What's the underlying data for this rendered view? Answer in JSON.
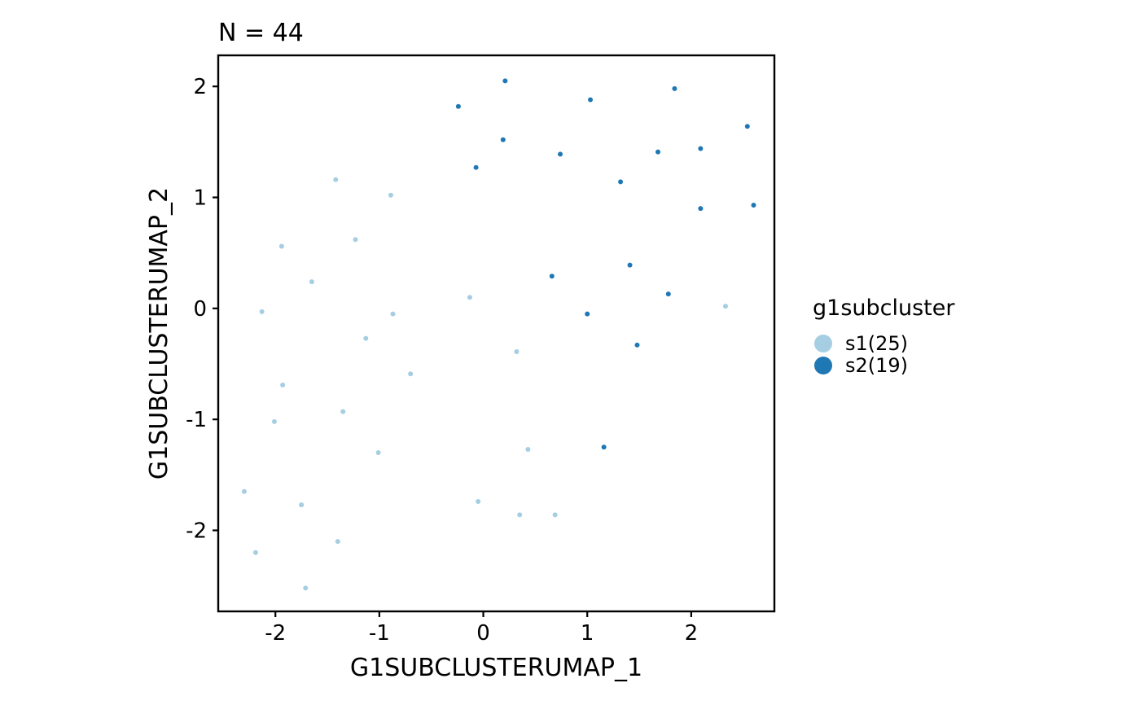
{
  "chart_data": {
    "type": "scatter",
    "title": "N = 44",
    "xlabel": "G1SUBCLUSTERUMAP_1",
    "ylabel": "G1SUBCLUSTERUMAP_2",
    "xlim": [
      -2.55,
      2.8
    ],
    "ylim": [
      -2.73,
      2.28
    ],
    "x_ticks": [
      -2,
      -1,
      0,
      1,
      2
    ],
    "y_ticks": [
      -2,
      -1,
      0,
      1,
      2
    ],
    "grid": false,
    "legend": {
      "title": "g1subcluster",
      "position": "right"
    },
    "series": [
      {
        "name": "s1(25)",
        "color": "#a6cee3",
        "points": [
          [
            -1.42,
            1.16
          ],
          [
            -0.89,
            1.02
          ],
          [
            -1.94,
            0.56
          ],
          [
            -1.23,
            0.62
          ],
          [
            -1.65,
            0.24
          ],
          [
            -0.13,
            0.1
          ],
          [
            -2.13,
            -0.03
          ],
          [
            -0.87,
            -0.05
          ],
          [
            -1.13,
            -0.27
          ],
          [
            2.33,
            0.02
          ],
          [
            0.32,
            -0.39
          ],
          [
            -0.7,
            -0.59
          ],
          [
            -1.93,
            -0.69
          ],
          [
            -1.35,
            -0.93
          ],
          [
            -2.01,
            -1.02
          ],
          [
            -1.01,
            -1.3
          ],
          [
            0.43,
            -1.27
          ],
          [
            -2.3,
            -1.65
          ],
          [
            -1.75,
            -1.77
          ],
          [
            -0.05,
            -1.74
          ],
          [
            0.35,
            -1.86
          ],
          [
            0.69,
            -1.86
          ],
          [
            -1.4,
            -2.1
          ],
          [
            -2.19,
            -2.2
          ],
          [
            -1.71,
            -2.52
          ]
        ]
      },
      {
        "name": "s2(19)",
        "color": "#1f78b4",
        "points": [
          [
            0.21,
            2.05
          ],
          [
            -0.24,
            1.82
          ],
          [
            1.84,
            1.98
          ],
          [
            1.03,
            1.88
          ],
          [
            0.19,
            1.52
          ],
          [
            0.74,
            1.39
          ],
          [
            -0.07,
            1.27
          ],
          [
            1.68,
            1.41
          ],
          [
            2.09,
            1.44
          ],
          [
            2.54,
            1.64
          ],
          [
            1.32,
            1.14
          ],
          [
            2.09,
            0.9
          ],
          [
            2.6,
            0.93
          ],
          [
            1.41,
            0.39
          ],
          [
            0.66,
            0.29
          ],
          [
            1.78,
            0.13
          ],
          [
            1.0,
            -0.05
          ],
          [
            1.48,
            -0.33
          ],
          [
            1.16,
            -1.25
          ]
        ]
      }
    ]
  }
}
